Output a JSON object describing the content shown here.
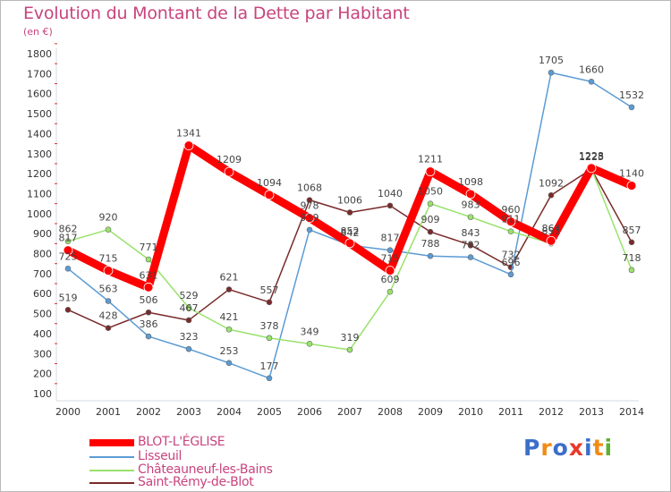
{
  "chart_data": {
    "type": "line",
    "title": "Evolution du Montant de la Dette par Habitant",
    "unit_label": "(en €)",
    "categories": [
      "2000",
      "2001",
      "2002",
      "2003",
      "2004",
      "2005",
      "2006",
      "2007",
      "2008",
      "2009",
      "2010",
      "2011",
      "2012",
      "2013",
      "2014"
    ],
    "ylim": [
      100,
      1800
    ],
    "yticks": [
      100,
      200,
      300,
      400,
      500,
      600,
      700,
      800,
      900,
      1000,
      1100,
      1200,
      1300,
      1400,
      1500,
      1600,
      1700,
      1800
    ],
    "grid": false,
    "legend_position": "bottom-left",
    "series": [
      {
        "name": "BLOT-L'ÉGLISE",
        "color": "#ff0000",
        "values": [
          817,
          715,
          631,
          1341,
          1209,
          1094,
          978,
          852,
          715,
          1211,
          1098,
          960,
          864,
          1228,
          1140
        ]
      },
      {
        "name": "Lisseuil",
        "color": "#5b9bd5",
        "values": [
          725,
          563,
          386,
          323,
          253,
          177,
          919,
          842,
          817,
          788,
          782,
          696,
          1705,
          1660,
          1532
        ]
      },
      {
        "name": "Châteauneuf-les-Bains",
        "color": "#99e26c",
        "values": [
          862,
          920,
          771,
          529,
          421,
          378,
          349,
          319,
          609,
          1050,
          983,
          911,
          851,
          1225,
          718
        ]
      },
      {
        "name": "Saint-Rémy-de-Blot",
        "color": "#7a2a2a",
        "values": [
          519,
          428,
          506,
          467,
          621,
          557,
          1068,
          1006,
          1040,
          909,
          843,
          732,
          1092,
          1223,
          857
        ]
      }
    ]
  },
  "logo": {
    "letters": [
      "P",
      "r",
      "o",
      "x",
      "i",
      "t",
      "i"
    ],
    "colors": [
      "#3b6fc8",
      "#f08c16",
      "#3b6fc8",
      "#e8392a",
      "#3b6fc8",
      "#f08c16",
      "#5cb131"
    ]
  }
}
